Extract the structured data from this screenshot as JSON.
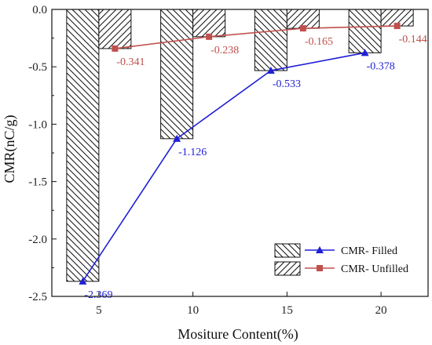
{
  "chart_data": {
    "type": "bar",
    "xlabel": "Mositure Content(%)",
    "ylabel": "CMR(nC/g)",
    "categories": [
      "5",
      "10",
      "15",
      "20"
    ],
    "ylim": [
      -2.5,
      0.0
    ],
    "yticks": [
      "0.0",
      "-0.5",
      "-1.0",
      "-1.5",
      "-2.0",
      "-2.5"
    ],
    "series": [
      {
        "name": "CMR- Filled",
        "bar_hatch": "backslash",
        "values": [
          -2.369,
          -1.126,
          -0.533,
          -0.378
        ],
        "labels": [
          "-2.369",
          "-1.126",
          "-0.533",
          "-0.378"
        ],
        "line_color": "#1f1fd6",
        "marker": "triangle"
      },
      {
        "name": "CMR- Unfilled",
        "bar_hatch": "slash",
        "values": [
          -0.341,
          -0.238,
          -0.165,
          -0.144
        ],
        "labels": [
          "-0.341",
          "-0.238",
          "-0.165",
          "-0.144"
        ],
        "line_color": "#c0504d",
        "marker": "square"
      }
    ],
    "legend": {
      "position": "bottom-right"
    },
    "grid": false
  }
}
